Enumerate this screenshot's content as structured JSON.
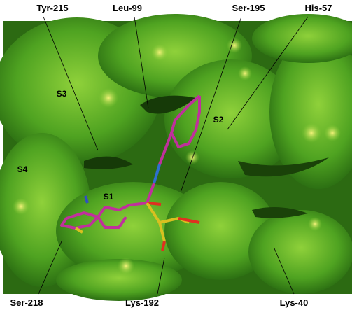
{
  "residue_labels": [
    "Tyr-215",
    "Leu-99",
    "Ser-195",
    "His-57",
    "Ser-218",
    "Lys-192",
    "Lys-40"
  ],
  "subsite_labels": [
    "S3",
    "S2",
    "S4",
    "S1"
  ]
}
